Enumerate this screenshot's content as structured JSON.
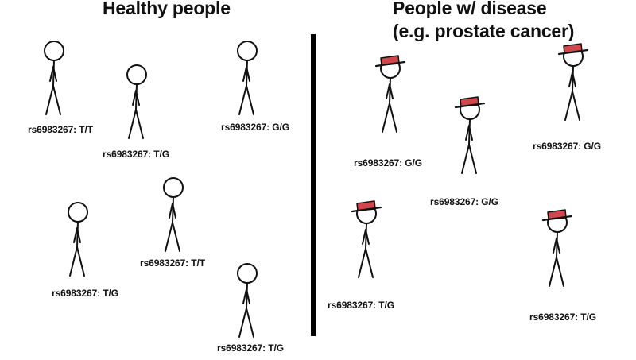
{
  "panels": {
    "healthy": {
      "title": "Healthy people",
      "people": [
        {
          "label": "rs6983267: T/T",
          "hat": false
        },
        {
          "label": "rs6983267: T/G",
          "hat": false
        },
        {
          "label": "rs6983267: G/G",
          "hat": false
        },
        {
          "label": "rs6983267: T/G",
          "hat": false
        },
        {
          "label": "rs6983267: T/T",
          "hat": false
        },
        {
          "label": "rs6983267: T/G",
          "hat": false
        }
      ]
    },
    "disease": {
      "title_line1": "People w/ disease",
      "title_line2": "(e.g. prostate cancer)",
      "people": [
        {
          "label": "rs6983267: G/G",
          "hat": true
        },
        {
          "label": "rs6983267: G/G",
          "hat": true
        },
        {
          "label": "rs6983267: G/G",
          "hat": true
        },
        {
          "label": "rs6983267: T/G",
          "hat": true
        },
        {
          "label": "rs6983267: T/G",
          "hat": true
        }
      ]
    }
  },
  "colors": {
    "hat": "#d0484d",
    "ink": "#111111",
    "divider": "#000000"
  }
}
